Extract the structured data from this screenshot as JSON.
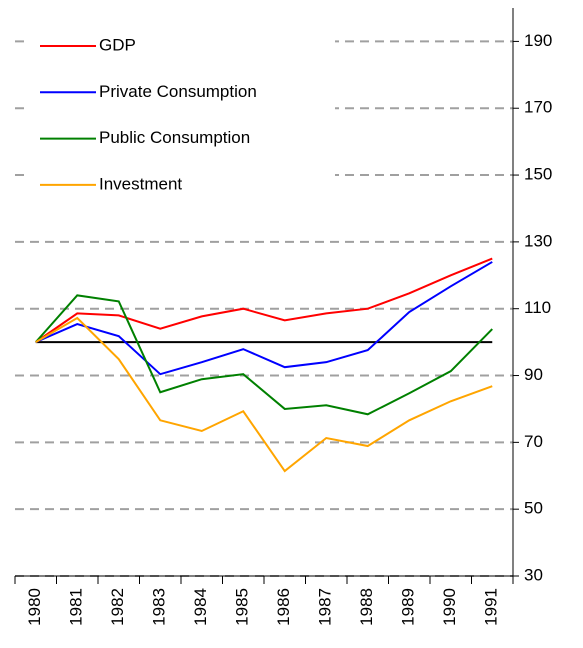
{
  "chart_data": {
    "type": "line",
    "categories": [
      "1980",
      "1981",
      "1982",
      "1983",
      "1984",
      "1985",
      "1986",
      "1987",
      "1988",
      "1989",
      "1990",
      "1991"
    ],
    "series": [
      {
        "name": "GDP",
        "color": "#ff0000",
        "values": [
          100,
          108.6,
          108,
          104,
          107.7,
          110,
          106.5,
          108.6,
          110,
          114.6,
          120,
          125
        ]
      },
      {
        "name": "Private Consumption",
        "color": "#0000ff",
        "values": [
          100,
          105.4,
          101.8,
          90.4,
          94,
          97.9,
          92.5,
          94,
          97.6,
          109,
          116.7,
          124
        ]
      },
      {
        "name": "Public Consumption",
        "color": "#008000",
        "values": [
          100,
          114,
          112.2,
          85,
          88.9,
          90.4,
          80,
          81.1,
          78.4,
          84.7,
          91.3,
          103.9
        ]
      },
      {
        "name": "Investment",
        "color": "#ffa500",
        "values": [
          100,
          107.2,
          94.9,
          76.6,
          73.4,
          79.3,
          61.4,
          71.3,
          68.9,
          76.6,
          82.3,
          86.8
        ]
      }
    ],
    "ylim": [
      30,
      200
    ],
    "yticks": [
      30,
      50,
      70,
      90,
      110,
      130,
      150,
      170,
      190
    ],
    "reference_line": 100,
    "grid": true,
    "legend": "top-left"
  }
}
